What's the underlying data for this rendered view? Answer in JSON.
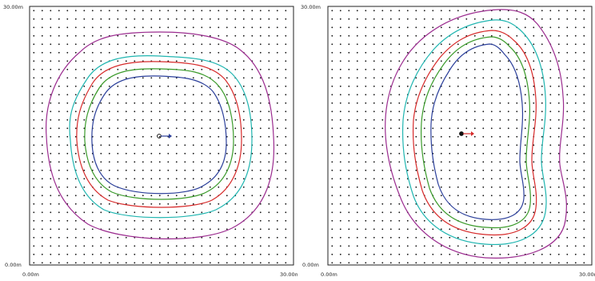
{
  "diagrams": [
    {
      "id": "left",
      "axis": {
        "y_top": "30.00m",
        "y_bottom": "0.00m",
        "x_left": "0.00m",
        "x_right": "30.00m"
      },
      "contours": [
        {
          "level": "outer",
          "color": "#9b2c8f",
          "label": ""
        },
        {
          "level": "4",
          "color": "#1fb5b0",
          "label": ""
        },
        {
          "level": "3",
          "color": "#d62a2a",
          "label": ""
        },
        {
          "level": "2",
          "color": "#3a9a2a",
          "label": ""
        },
        {
          "level": "1",
          "color": "#2b3f9a",
          "label": ""
        }
      ]
    },
    {
      "id": "right",
      "axis": {
        "y_top": "30.00m",
        "y_bottom": "0.00m",
        "x_left": "0.00m",
        "x_right": "30.00m"
      },
      "contours": [
        {
          "level": "outer",
          "color": "#9b2c8f",
          "label": ""
        },
        {
          "level": "4",
          "color": "#1fb5b0",
          "label": ""
        },
        {
          "level": "3",
          "color": "#d62a2a",
          "label": ""
        },
        {
          "level": "2",
          "color": "#3a9a2a",
          "label": ""
        },
        {
          "level": "1",
          "color": "#2b3f9a",
          "label": ""
        }
      ]
    }
  ],
  "colors": {
    "frame": "#222222",
    "grid_point": "#111111",
    "arrow_left": "#2b3f9a",
    "arrow_right": "#d62a2a"
  }
}
